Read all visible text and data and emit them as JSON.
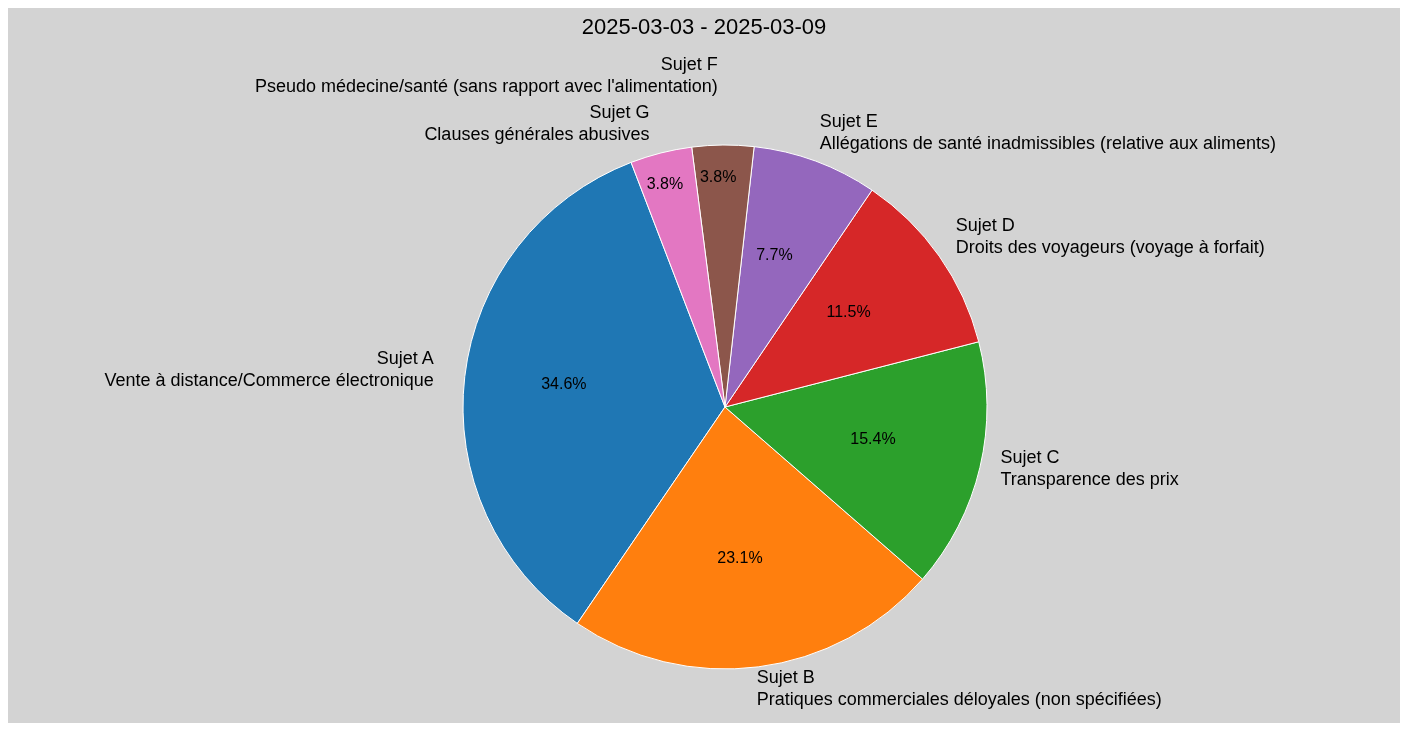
{
  "chart_data": {
    "type": "pie",
    "title": "2025-03-03 - 2025-03-09",
    "categories": [
      "Sujet A\nVente à distance/Commerce électronique",
      "Sujet B\nPratiques commerciales déloyales (non spécifiées)",
      "Sujet C\nTransparence des prix",
      "Sujet D\nDroits des voyageurs (voyage à forfait)",
      "Sujet E\nAllégations de santé inadmissibles (relative aux aliments)",
      "Sujet F\nPseudo médecine/santé (sans rapport avec l'alimentation)",
      "Sujet G\nClauses générales abusives"
    ],
    "values": [
      34.6,
      23.1,
      15.4,
      11.5,
      7.7,
      3.8,
      3.8
    ],
    "colors": [
      "#1f77b4",
      "#ff7f0e",
      "#2ca02c",
      "#d62728",
      "#9467bd",
      "#8c564b",
      "#e377c2"
    ],
    "value_labels": [
      "34.6%",
      "23.1%",
      "15.4%",
      "11.5%",
      "7.7%",
      "3.8%",
      "3.8%"
    ]
  }
}
